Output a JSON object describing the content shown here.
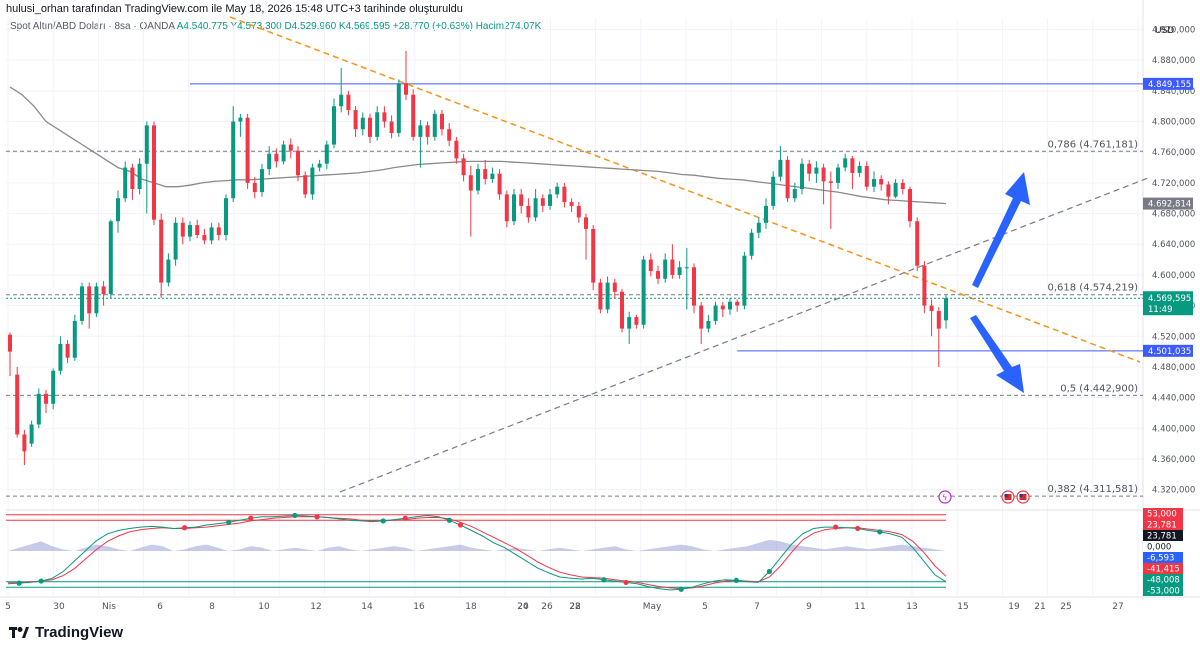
{
  "caption": "hulusi_orhan tarafından TradingView.com ile May 18, 2026 15:48 UTC+3 tarihinde oluşturuldu",
  "legend": {
    "symbol": "Spot Altın/ABD Doları · 8sa · OANDA",
    "ohlc": "A4.540,775  Y4.573,300  D4.529,960  K4.569,595  +28,770 (+0,63%)  Hacim274,07K"
  },
  "brand": "TradingView",
  "colors": {
    "up": "#089981",
    "down": "#f23645",
    "ma": "#8a8a8a",
    "trend_orange": "#f7931a",
    "level_blue": "#3d5afe",
    "arrow_blue": "#2962ff",
    "grid": "#f0f3fa",
    "text": "#131722"
  },
  "chart_data": {
    "type": "candlestick",
    "title": "Spot Altın/ABD Doları",
    "currency": "USD",
    "interval": "8sa",
    "ylim": [
      4300,
      4935
    ],
    "y_ticks": [
      "4.920,000",
      "4.880,000",
      "4.840,000",
      "4.800,000",
      "4.760,000",
      "4.720,000",
      "4.680,000",
      "4.640,000",
      "4.600,000",
      "4.560,000",
      "4.520,000",
      "4.480,000",
      "4.440,000",
      "4.400,000",
      "4.360,000",
      "4.320,000"
    ],
    "y_tick_values": [
      4920,
      4880,
      4840,
      4800,
      4760,
      4720,
      4680,
      4640,
      4600,
      4560,
      4520,
      4480,
      4440,
      4400,
      4360,
      4320
    ],
    "x_ticks": [
      "5",
      "30",
      "Nis",
      "6",
      "8",
      "10",
      "12",
      "14",
      "16",
      "18",
      "20",
      "22",
      "24",
      "26",
      "28",
      "May",
      "5",
      "7",
      "9",
      "11",
      "13",
      "15",
      "19",
      "21",
      "25",
      "27"
    ],
    "candles": [
      [
        4522,
        4500,
        4525,
        4468
      ],
      [
        4470,
        4392,
        4480,
        4388
      ],
      [
        4392,
        4370,
        4398,
        4352
      ],
      [
        4380,
        4405,
        4410,
        4376
      ],
      [
        4405,
        4445,
        4452,
        4400
      ],
      [
        4445,
        4432,
        4450,
        4420
      ],
      [
        4432,
        4475,
        4478,
        4425
      ],
      [
        4475,
        4510,
        4520,
        4470
      ],
      [
        4510,
        4492,
        4515,
        4485
      ],
      [
        4492,
        4540,
        4548,
        4488
      ],
      [
        4540,
        4585,
        4590,
        4535
      ],
      [
        4585,
        4550,
        4590,
        4530
      ],
      [
        4550,
        4585,
        4590,
        4545
      ],
      [
        4585,
        4575,
        4592,
        4560
      ],
      [
        4575,
        4670,
        4672,
        4570
      ],
      [
        4670,
        4700,
        4710,
        4655
      ],
      [
        4700,
        4740,
        4748,
        4695
      ],
      [
        4740,
        4712,
        4745,
        4698
      ],
      [
        4712,
        4745,
        4752,
        4705
      ],
      [
        4745,
        4795,
        4800,
        4680
      ],
      [
        4795,
        4672,
        4800,
        4665
      ],
      [
        4672,
        4590,
        4680,
        4570
      ],
      [
        4590,
        4620,
        4628,
        4585
      ],
      [
        4620,
        4668,
        4675,
        4612
      ],
      [
        4668,
        4650,
        4675,
        4640
      ],
      [
        4650,
        4665,
        4670,
        4644
      ],
      [
        4665,
        4652,
        4672,
        4648
      ],
      [
        4652,
        4645,
        4660,
        4640
      ],
      [
        4645,
        4662,
        4668,
        4640
      ],
      [
        4662,
        4652,
        4668,
        4645
      ],
      [
        4652,
        4700,
        4705,
        4645
      ],
      [
        4700,
        4800,
        4820,
        4695
      ],
      [
        4800,
        4805,
        4810,
        4780
      ],
      [
        4805,
        4720,
        4810,
        4712
      ],
      [
        4720,
        4708,
        4728,
        4700
      ],
      [
        4708,
        4738,
        4745,
        4702
      ],
      [
        4738,
        4758,
        4768,
        4730
      ],
      [
        4758,
        4748,
        4765,
        4740
      ],
      [
        4748,
        4770,
        4775,
        4744
      ],
      [
        4770,
        4762,
        4778,
        4752
      ],
      [
        4762,
        4730,
        4768,
        4722
      ],
      [
        4730,
        4705,
        4735,
        4700
      ],
      [
        4705,
        4740,
        4745,
        4698
      ],
      [
        4740,
        4745,
        4750,
        4735
      ],
      [
        4745,
        4770,
        4775,
        4738
      ],
      [
        4770,
        4820,
        4830,
        4765
      ],
      [
        4820,
        4835,
        4870,
        4812
      ],
      [
        4835,
        4815,
        4840,
        4808
      ],
      [
        4815,
        4790,
        4820,
        4780
      ],
      [
        4790,
        4805,
        4812,
        4782
      ],
      [
        4805,
        4780,
        4810,
        4772
      ],
      [
        4780,
        4812,
        4820,
        4775
      ],
      [
        4812,
        4800,
        4820,
        4792
      ],
      [
        4800,
        4785,
        4808,
        4778
      ],
      [
        4785,
        4850,
        4855,
        4780
      ],
      [
        4850,
        4835,
        4892,
        4828
      ],
      [
        4835,
        4780,
        4842,
        4775
      ],
      [
        4780,
        4795,
        4802,
        4740
      ],
      [
        4795,
        4780,
        4800,
        4770
      ],
      [
        4780,
        4810,
        4815,
        4775
      ],
      [
        4810,
        4790,
        4815,
        4782
      ],
      [
        4790,
        4775,
        4798,
        4768
      ],
      [
        4775,
        4752,
        4780,
        4745
      ],
      [
        4752,
        4730,
        4758,
        4722
      ],
      [
        4730,
        4710,
        4742,
        4650
      ],
      [
        4710,
        4738,
        4745,
        4705
      ],
      [
        4738,
        4725,
        4750,
        4718
      ],
      [
        4725,
        4732,
        4740,
        4720
      ],
      [
        4732,
        4705,
        4738,
        4698
      ],
      [
        4705,
        4670,
        4710,
        4662
      ],
      [
        4670,
        4705,
        4712,
        4665
      ],
      [
        4705,
        4690,
        4712,
        4680
      ],
      [
        4690,
        4675,
        4700,
        4668
      ],
      [
        4675,
        4700,
        4712,
        4670
      ],
      [
        4700,
        4690,
        4705,
        4682
      ],
      [
        4690,
        4705,
        4712,
        4685
      ],
      [
        4705,
        4715,
        4720,
        4700
      ],
      [
        4715,
        4695,
        4720,
        4688
      ],
      [
        4695,
        4690,
        4700,
        4682
      ],
      [
        4690,
        4675,
        4695,
        4668
      ],
      [
        4675,
        4660,
        4680,
        4620
      ],
      [
        4660,
        4590,
        4665,
        4580
      ],
      [
        4590,
        4555,
        4595,
        4550
      ],
      [
        4555,
        4590,
        4598,
        4550
      ],
      [
        4590,
        4578,
        4595,
        4570
      ],
      [
        4578,
        4530,
        4582,
        4525
      ],
      [
        4530,
        4545,
        4552,
        4510
      ],
      [
        4545,
        4535,
        4548,
        4530
      ],
      [
        4535,
        4620,
        4625,
        4530
      ],
      [
        4620,
        4605,
        4628,
        4598
      ],
      [
        4605,
        4595,
        4612,
        4588
      ],
      [
        4595,
        4620,
        4628,
        4590
      ],
      [
        4620,
        4600,
        4640,
        4595
      ],
      [
        4600,
        4610,
        4618,
        4595
      ],
      [
        4610,
        4610,
        4635,
        4555
      ],
      [
        4610,
        4560,
        4615,
        4550
      ],
      [
        4560,
        4530,
        4565,
        4510
      ],
      [
        4530,
        4540,
        4548,
        4525
      ],
      [
        4540,
        4560,
        4565,
        4535
      ],
      [
        4560,
        4555,
        4565,
        4545
      ],
      [
        4555,
        4565,
        4570,
        4548
      ],
      [
        4565,
        4560,
        4568,
        4552
      ],
      [
        4560,
        4625,
        4630,
        4555
      ],
      [
        4625,
        4655,
        4660,
        4620
      ],
      [
        4655,
        4668,
        4675,
        4648
      ],
      [
        4668,
        4690,
        4700,
        4660
      ],
      [
        4690,
        4728,
        4735,
        4685
      ],
      [
        4728,
        4750,
        4768,
        4722
      ],
      [
        4750,
        4700,
        4755,
        4695
      ],
      [
        4700,
        4712,
        4720,
        4695
      ],
      [
        4712,
        4745,
        4752,
        4705
      ],
      [
        4745,
        4732,
        4750,
        4722
      ],
      [
        4732,
        4740,
        4748,
        4720
      ],
      [
        4740,
        4722,
        4745,
        4692
      ],
      [
        4722,
        4720,
        4735,
        4660
      ],
      [
        4720,
        4740,
        4745,
        4712
      ],
      [
        4740,
        4752,
        4758,
        4735
      ],
      [
        4752,
        4733,
        4755,
        4712
      ],
      [
        4733,
        4742,
        4748,
        4728
      ],
      [
        4742,
        4715,
        4748,
        4710
      ],
      [
        4715,
        4725,
        4735,
        4708
      ],
      [
        4725,
        4718,
        4730,
        4710
      ],
      [
        4718,
        4702,
        4722,
        4692
      ],
      [
        4702,
        4720,
        4725,
        4700
      ],
      [
        4720,
        4712,
        4725,
        4705
      ],
      [
        4712,
        4670,
        4715,
        4662
      ],
      [
        4670,
        4612,
        4675,
        4605
      ],
      [
        4612,
        4560,
        4618,
        4550
      ],
      [
        4560,
        4553,
        4568,
        4520
      ],
      [
        4553,
        4530,
        4558,
        4480
      ],
      [
        4540.775,
        4569.595,
        4573.3,
        4529.96
      ]
    ],
    "ma": [
      4845,
      4835,
      4820,
      4800,
      4790,
      4780,
      4770,
      4760,
      4750,
      4740,
      4735,
      4725,
      4720,
      4715,
      4715,
      4717,
      4720,
      4722,
      4723,
      4724,
      4724,
      4725,
      4726,
      4727,
      4728,
      4729,
      4730,
      4731,
      4732,
      4733,
      4735,
      4737,
      4740,
      4742,
      4744,
      4745,
      4746,
      4747,
      4748,
      4748,
      4748,
      4748,
      4747,
      4746,
      4745,
      4744,
      4743,
      4742,
      4741,
      4740,
      4739,
      4738,
      4737,
      4736,
      4735,
      4733,
      4731,
      4730,
      4728,
      4726,
      4725,
      4724,
      4722,
      4720,
      4718,
      4716,
      4714,
      4712,
      4710,
      4708,
      4705,
      4702,
      4700,
      4698,
      4697,
      4696,
      4695,
      4694,
      4693
    ],
    "levels": [
      {
        "label": "4.849,155",
        "value": 4849.155
      },
      {
        "label": "4.501,035",
        "value": 4501.035
      }
    ],
    "fib": [
      {
        "label": "0,786 (4.761,181)",
        "value": 4761.181
      },
      {
        "label": "0,618 (4.574,219)",
        "value": 4574.219
      },
      {
        "label": "0,5 (4.442,900)",
        "value": 4442.9
      },
      {
        "label": "0,382 (4.311,581)",
        "value": 4311.581
      }
    ],
    "price_tags": {
      "ma_value": "4.692,814",
      "last_price": "4.569,595",
      "countdown": "11:49"
    },
    "oscillator": {
      "tags": [
        "53,000",
        "23,781",
        "23,781",
        "0,000",
        "-6,593",
        "-41,415",
        "-48,008",
        "-53,000"
      ],
      "fast": [
        -48,
        -47,
        -46,
        -44,
        -40,
        -30,
        -15,
        0,
        15,
        25,
        30,
        33,
        35,
        36,
        35,
        33,
        34,
        35,
        38,
        40,
        42,
        45,
        48,
        50,
        50,
        51,
        52,
        51,
        50,
        49,
        47,
        45,
        44,
        43,
        44,
        46,
        48,
        50,
        52,
        50,
        45,
        38,
        30,
        22,
        12,
        5,
        -5,
        -15,
        -25,
        -32,
        -38,
        -40,
        -41,
        -40,
        -42,
        -44,
        -46,
        -48,
        -52,
        -55,
        -57,
        -56,
        -53,
        -48,
        -44,
        -42,
        -43,
        -45,
        -46,
        -30,
        -10,
        10,
        25,
        33,
        35,
        35,
        34,
        33,
        30,
        28,
        25,
        20,
        5,
        -15,
        -35,
        -45
      ],
      "slow": [
        -46,
        -46,
        -45,
        -44,
        -42,
        -36,
        -26,
        -12,
        2,
        14,
        22,
        28,
        31,
        33,
        34,
        33,
        33,
        34,
        35,
        37,
        39,
        41,
        44,
        46,
        48,
        49,
        50,
        50,
        50,
        49,
        48,
        47,
        45,
        44,
        44,
        45,
        46,
        48,
        49,
        49,
        47,
        42,
        36,
        28,
        20,
        12,
        4,
        -6,
        -16,
        -24,
        -31,
        -35,
        -38,
        -39,
        -40,
        -42,
        -44,
        -46,
        -49,
        -52,
        -54,
        -55,
        -54,
        -51,
        -47,
        -44,
        -43,
        -44,
        -45,
        -38,
        -22,
        -2,
        16,
        26,
        31,
        33,
        34,
        34,
        32,
        30,
        28,
        24,
        14,
        -2,
        -22,
        -37
      ]
    }
  }
}
